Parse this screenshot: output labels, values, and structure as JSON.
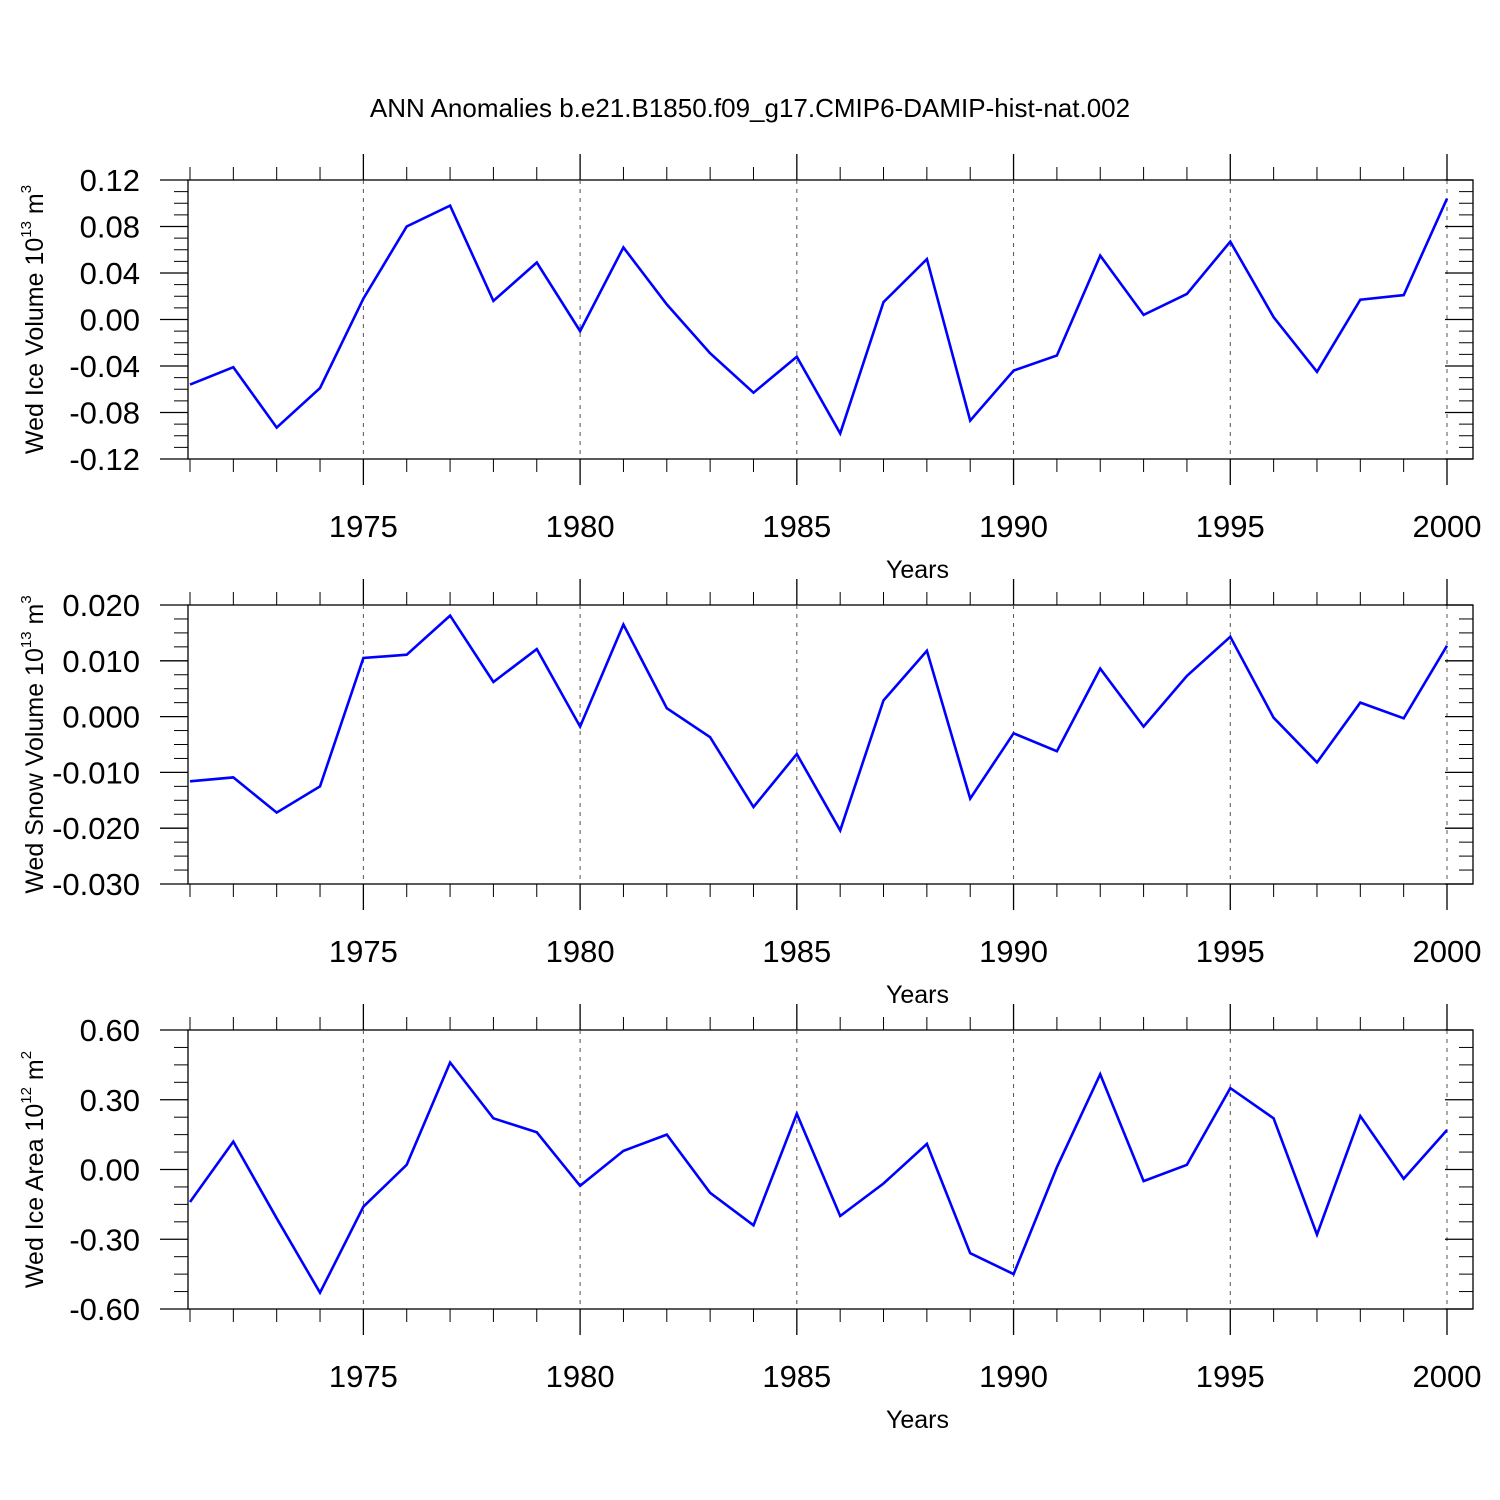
{
  "title": "ANN Anomalies b.e21.B1850.f09_g17.CMIP6-DAMIP-hist-nat.002",
  "line_color": "#0000ff",
  "chart_data": [
    {
      "type": "line",
      "ylabel_main": "Wed Ice Volume 10",
      "ylabel_exp": "13",
      "ylabel_unit": " m",
      "ylabel_unit_exp": "3",
      "xlabel": "Years",
      "xlim": [
        1971,
        2000
      ],
      "ylim": [
        -0.12,
        0.12
      ],
      "x_ticks": [
        "1975",
        "1980",
        "1985",
        "1990",
        "1995",
        "2000"
      ],
      "y_ticks": [
        "0.12",
        "0.08",
        "0.04",
        "0.00",
        "-0.04",
        "-0.08",
        "-0.12"
      ],
      "x": [
        1971,
        1972,
        1973,
        1974,
        1975,
        1976,
        1977,
        1978,
        1979,
        1980,
        1981,
        1982,
        1983,
        1984,
        1985,
        1986,
        1987,
        1988,
        1989,
        1990,
        1991,
        1992,
        1993,
        1994,
        1995,
        1996,
        1997,
        1998,
        1999,
        2000
      ],
      "values": [
        -0.056,
        -0.041,
        -0.093,
        -0.059,
        0.018,
        0.08,
        0.098,
        0.016,
        0.049,
        -0.01,
        0.062,
        0.013,
        -0.029,
        -0.063,
        -0.032,
        -0.098,
        0.015,
        0.052,
        -0.087,
        -0.044,
        -0.031,
        0.055,
        0.004,
        0.022,
        0.067,
        0.002,
        -0.045,
        0.017,
        0.021,
        0.104
      ]
    },
    {
      "type": "line",
      "ylabel_main": "Wed Snow Volume 10",
      "ylabel_exp": "13",
      "ylabel_unit": " m",
      "ylabel_unit_exp": "3",
      "xlabel": "Years",
      "xlim": [
        1971,
        2000
      ],
      "ylim": [
        -0.03,
        0.02
      ],
      "x_ticks": [
        "1975",
        "1980",
        "1985",
        "1990",
        "1995",
        "2000"
      ],
      "y_ticks": [
        "0.020",
        "0.010",
        "0.000",
        "-0.010",
        "-0.020",
        "-0.030"
      ],
      "x": [
        1971,
        1972,
        1973,
        1974,
        1975,
        1976,
        1977,
        1978,
        1979,
        1980,
        1981,
        1982,
        1983,
        1984,
        1985,
        1986,
        1987,
        1988,
        1989,
        1990,
        1991,
        1992,
        1993,
        1994,
        1995,
        1996,
        1997,
        1998,
        1999,
        2000
      ],
      "values": [
        -0.0116,
        -0.0109,
        -0.0172,
        -0.0125,
        0.0105,
        0.0111,
        0.0181,
        0.0062,
        0.0121,
        -0.0018,
        0.0165,
        0.0015,
        -0.0037,
        -0.0162,
        -0.0067,
        -0.0204,
        0.0029,
        0.0118,
        -0.0147,
        -0.003,
        -0.0062,
        0.0086,
        -0.0018,
        0.0073,
        0.0143,
        -0.0002,
        -0.0082,
        0.0025,
        -0.0003,
        0.0127
      ]
    },
    {
      "type": "line",
      "ylabel_main": "Wed Ice Area 10",
      "ylabel_exp": "12",
      "ylabel_unit": " m",
      "ylabel_unit_exp": "2",
      "xlabel": "Years",
      "xlim": [
        1971,
        2000
      ],
      "ylim": [
        -0.6,
        0.6
      ],
      "x_ticks": [
        "1975",
        "1980",
        "1985",
        "1990",
        "1995",
        "2000"
      ],
      "y_ticks": [
        "0.60",
        "0.30",
        "0.00",
        "-0.30",
        "-0.60"
      ],
      "x": [
        1971,
        1972,
        1973,
        1974,
        1975,
        1976,
        1977,
        1978,
        1979,
        1980,
        1981,
        1982,
        1983,
        1984,
        1985,
        1986,
        1987,
        1988,
        1989,
        1990,
        1991,
        1992,
        1993,
        1994,
        1995,
        1996,
        1997,
        1998,
        1999,
        2000
      ],
      "values": [
        -0.14,
        0.12,
        -0.21,
        -0.53,
        -0.16,
        0.02,
        0.46,
        0.22,
        0.16,
        -0.07,
        0.08,
        0.15,
        -0.1,
        -0.24,
        0.24,
        -0.2,
        -0.06,
        0.11,
        -0.36,
        -0.45,
        0.01,
        0.41,
        -0.05,
        0.02,
        0.35,
        0.22,
        -0.28,
        0.23,
        -0.04,
        0.17
      ]
    }
  ]
}
